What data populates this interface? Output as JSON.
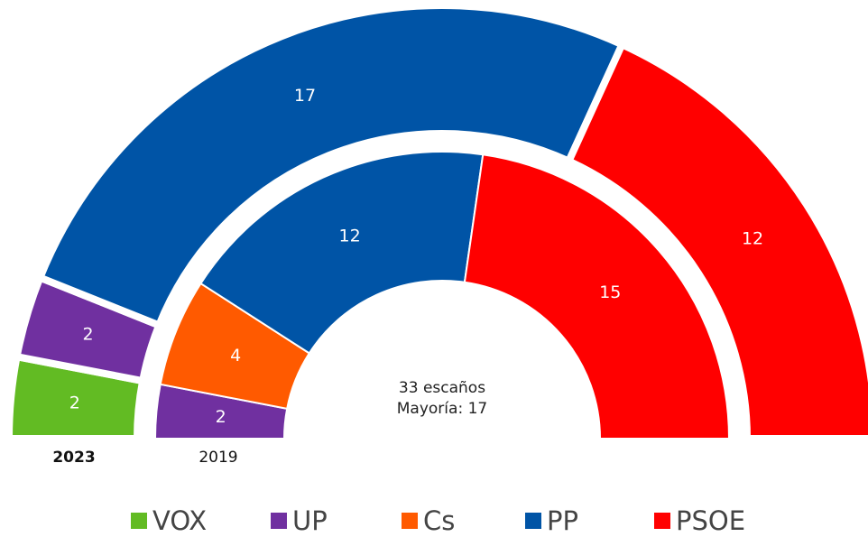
{
  "chart_data": {
    "type": "semicircle",
    "categories": [
      "VOX",
      "UP",
      "Cs",
      "PP",
      "PSOE"
    ],
    "colors": [
      "#62bb23",
      "#7030a0",
      "#ff5a00",
      "#0054a6",
      "#ff0000"
    ],
    "rings": [
      {
        "name": "2023",
        "values": [
          2,
          2,
          null,
          17,
          12
        ]
      },
      {
        "name": "2019",
        "values": [
          null,
          2,
          4,
          12,
          15
        ]
      }
    ],
    "annotations": [
      "33  escaños",
      "Mayoría: 17"
    ]
  }
}
